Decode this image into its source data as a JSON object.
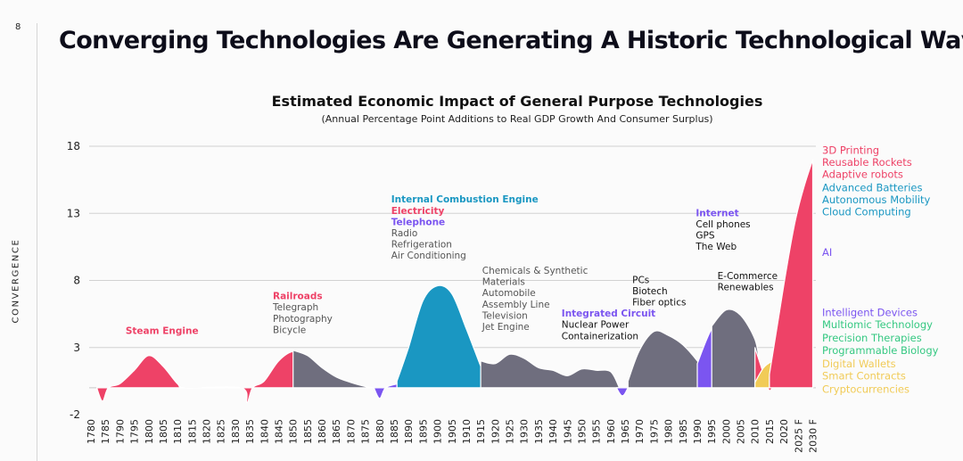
{
  "page": {
    "number": "8",
    "title": "Converging Technologies Are Generating A Historic Technological Wave",
    "side_label": "CONVERGENCE"
  },
  "colors": {
    "red": "#ee4267",
    "blue": "#1a97c2",
    "purple": "#7b55f0",
    "gray": "#6f6e7e",
    "green": "#35c882",
    "yellow": "#f1cb57",
    "label_gray": "#555555"
  },
  "chart_data": {
    "type": "area",
    "title": "Estimated Economic Impact of General Purpose Technologies",
    "subtitle": "(Annual Percentage Point Additions to Real GDP Growth And Consumer Surplus)",
    "ylabel": "CONVERGENCE",
    "ylim": [
      -2,
      18
    ],
    "yticks": [
      -2,
      3,
      8,
      13,
      18
    ],
    "grid": true,
    "x_ticks": [
      "1780",
      "1785",
      "1790",
      "1795",
      "1800",
      "1805",
      "1810",
      "1815",
      "1820",
      "1825",
      "1830",
      "1835",
      "1840",
      "1845",
      "1850",
      "1855",
      "1860",
      "1865",
      "1870",
      "1875",
      "1880",
      "1885",
      "1890",
      "1895",
      "1900",
      "1905",
      "1910",
      "1915",
      "1920",
      "1925",
      "1930",
      "1935",
      "1940",
      "1945",
      "1950",
      "1955",
      "1960",
      "1965",
      "1970",
      "1975",
      "1980",
      "1985",
      "1990",
      "1995",
      "2000",
      "2005",
      "2010",
      "2015",
      "2020",
      "2025 F",
      "2030 F"
    ],
    "series": [
      {
        "color": "red",
        "points": [
          [
            1782,
            0
          ],
          [
            1784,
            -1
          ],
          [
            1786,
            0
          ],
          [
            1790,
            0.3
          ],
          [
            1795,
            1.3
          ],
          [
            1800,
            2.4
          ],
          [
            1805,
            1.6
          ],
          [
            1810,
            0.3
          ],
          [
            1813,
            0
          ],
          [
            1832,
            0
          ],
          [
            1834,
            -1.1
          ],
          [
            1836,
            0
          ],
          [
            1840,
            0.5
          ],
          [
            1845,
            2
          ],
          [
            1850,
            2.7
          ],
          [
            1855,
            2.2
          ],
          [
            1860,
            1
          ],
          [
            1865,
            0.4
          ],
          [
            1867,
            0
          ]
        ]
      },
      {
        "color": "gray",
        "points": [
          [
            1850,
            2.8
          ],
          [
            1855,
            2.4
          ],
          [
            1860,
            1.5
          ],
          [
            1865,
            0.8
          ],
          [
            1870,
            0.4
          ],
          [
            1875,
            0.1
          ],
          [
            1878,
            0
          ]
        ]
      },
      {
        "color": "purple",
        "points": [
          [
            1878,
            0
          ],
          [
            1880,
            -0.8
          ],
          [
            1882,
            0
          ],
          [
            1886,
            0.3
          ],
          [
            1890,
            0.6
          ],
          [
            1895,
            1.6
          ],
          [
            1900,
            2.4
          ],
          [
            1905,
            2
          ],
          [
            1910,
            1.1
          ],
          [
            1915,
            0.5
          ],
          [
            1918,
            0
          ]
        ]
      },
      {
        "color": "red",
        "points": [
          [
            1886,
            0.4
          ],
          [
            1890,
            1.5
          ],
          [
            1895,
            4
          ],
          [
            1900,
            5.1
          ],
          [
            1905,
            4.4
          ],
          [
            1910,
            2.6
          ],
          [
            1915,
            1
          ],
          [
            1918,
            0
          ]
        ]
      },
      {
        "color": "blue",
        "points": [
          [
            1886,
            0.5
          ],
          [
            1890,
            3
          ],
          [
            1895,
            6.5
          ],
          [
            1900,
            7.6
          ],
          [
            1905,
            7
          ],
          [
            1910,
            4.4
          ],
          [
            1915,
            1.6
          ],
          [
            1918,
            0
          ]
        ]
      },
      {
        "color": "gray",
        "points": [
          [
            1915,
            2
          ],
          [
            1920,
            1.8
          ],
          [
            1925,
            2.5
          ],
          [
            1930,
            2.2
          ],
          [
            1935,
            1.5
          ],
          [
            1940,
            1.3
          ],
          [
            1945,
            0.9
          ],
          [
            1950,
            1.4
          ],
          [
            1955,
            1.3
          ],
          [
            1960,
            1.2
          ],
          [
            1963,
            0
          ]
        ]
      },
      {
        "color": "purple",
        "points": [
          [
            1962,
            0
          ],
          [
            1964,
            -0.6
          ],
          [
            1966,
            0
          ],
          [
            1970,
            2
          ],
          [
            1975,
            3.3
          ],
          [
            1980,
            3.6
          ],
          [
            1985,
            2.9
          ],
          [
            1990,
            1.5
          ],
          [
            1993,
            0.5
          ]
        ]
      },
      {
        "color": "gray",
        "points": [
          [
            1966,
            0.5
          ],
          [
            1970,
            2.8
          ],
          [
            1975,
            4.2
          ],
          [
            1980,
            3.9
          ],
          [
            1985,
            3.2
          ],
          [
            1990,
            2
          ],
          [
            1993,
            1
          ]
        ]
      },
      {
        "color": "purple",
        "points": [
          [
            1990,
            1.8
          ],
          [
            1995,
            4.4
          ],
          [
            2000,
            5.3
          ],
          [
            2005,
            5
          ],
          [
            2010,
            2.4
          ],
          [
            2013,
            0.5
          ],
          [
            2015,
            0
          ]
        ]
      },
      {
        "color": "gray",
        "points": [
          [
            1995,
            4.6
          ],
          [
            2000,
            5.8
          ],
          [
            2005,
            5.4
          ],
          [
            2010,
            3.6
          ],
          [
            2012,
            1.6
          ],
          [
            2015,
            0.5
          ]
        ]
      },
      {
        "color": "red",
        "points": [
          [
            2010,
            3
          ],
          [
            2013,
            1
          ],
          [
            2015,
            -0.2
          ],
          [
            2017,
            0.5
          ]
        ]
      },
      {
        "color": "yellow",
        "points": [
          [
            2010,
            0.4
          ],
          [
            2013,
            1.5
          ],
          [
            2016,
            2
          ],
          [
            2020,
            2.6
          ],
          [
            2025,
            3.3
          ],
          [
            2030,
            3.4
          ]
        ]
      },
      {
        "color": "green",
        "points": [
          [
            2016,
            2.3
          ],
          [
            2020,
            3
          ],
          [
            2025,
            3.8
          ],
          [
            2030,
            4.1
          ]
        ]
      },
      {
        "color": "purple",
        "points": [
          [
            2015,
            0.5
          ],
          [
            2018,
            3
          ],
          [
            2021,
            6
          ],
          [
            2024,
            9
          ],
          [
            2027,
            11.5
          ],
          [
            2030,
            12.8
          ]
        ]
      },
      {
        "color": "blue",
        "points": [
          [
            2015,
            0.8
          ],
          [
            2018,
            4
          ],
          [
            2021,
            7.5
          ],
          [
            2024,
            11
          ],
          [
            2027,
            13.5
          ],
          [
            2030,
            15.2
          ]
        ]
      },
      {
        "color": "red",
        "points": [
          [
            2015,
            1
          ],
          [
            2018,
            5
          ],
          [
            2021,
            9
          ],
          [
            2024,
            12.5
          ],
          [
            2027,
            15
          ],
          [
            2030,
            17
          ]
        ]
      }
    ],
    "annotations": [
      {
        "x": 1792,
        "y": 4,
        "lines": [
          {
            "text": "Steam Engine",
            "style": "bold",
            "color": "red"
          }
        ]
      },
      {
        "x": 1843,
        "y": 6.6,
        "lines": [
          {
            "text": "Railroads",
            "style": "bold",
            "color": "red"
          },
          {
            "text": "Telegraph",
            "style": "normal",
            "color": "label_gray"
          },
          {
            "text": "Photography",
            "style": "normal",
            "color": "label_gray"
          },
          {
            "text": "Bicycle",
            "style": "normal",
            "color": "label_gray"
          }
        ]
      },
      {
        "x": 1884,
        "y": 13.8,
        "lines": [
          {
            "text": "Internal Combustion Engine",
            "style": "bold",
            "color": "blue"
          },
          {
            "text": "Electricity",
            "style": "bold",
            "color": "red"
          },
          {
            "text": "Telephone",
            "style": "bold",
            "color": "purple"
          },
          {
            "text": "Radio",
            "style": "normal",
            "color": "label_gray"
          },
          {
            "text": "Refrigeration",
            "style": "normal",
            "color": "label_gray"
          },
          {
            "text": "Air Conditioning",
            "style": "normal",
            "color": "label_gray"
          }
        ]
      },
      {
        "x": 1915.5,
        "y": 8.5,
        "lines": [
          {
            "text": "Chemicals & Synthetic",
            "style": "normal",
            "color": "label_gray"
          },
          {
            "text": "Materials",
            "style": "normal",
            "color": "label_gray"
          },
          {
            "text": "Automobile",
            "style": "normal",
            "color": "label_gray"
          },
          {
            "text": "Assembly Line",
            "style": "normal",
            "color": "label_gray"
          },
          {
            "text": "Television",
            "style": "normal",
            "color": "label_gray"
          },
          {
            "text": "Jet Engine",
            "style": "normal",
            "color": "label_gray"
          }
        ]
      },
      {
        "x": 1943,
        "y": 5.3,
        "lines": [
          {
            "text": "Integrated Circuit",
            "style": "bold",
            "color": "purple"
          },
          {
            "text": "Nuclear Power",
            "style": "normal",
            "color": "#111111"
          },
          {
            "text": "Containerization",
            "style": "normal",
            "color": "#111111"
          }
        ]
      },
      {
        "x": 1967.5,
        "y": 7.8,
        "lines": [
          {
            "text": "PCs",
            "style": "normal",
            "color": "#111111"
          },
          {
            "text": "Biotech",
            "style": "normal",
            "color": "#111111"
          },
          {
            "text": "Fiber optics",
            "style": "normal",
            "color": "#111111"
          }
        ]
      },
      {
        "x": 1989.5,
        "y": 12.8,
        "lines": [
          {
            "text": "Internet",
            "style": "bold",
            "color": "purple"
          },
          {
            "text": "Cell phones",
            "style": "normal",
            "color": "#111111"
          },
          {
            "text": "GPS",
            "style": "normal",
            "color": "#111111"
          },
          {
            "text": "The Web",
            "style": "normal",
            "color": "#111111"
          }
        ]
      },
      {
        "x": 1997,
        "y": 8.1,
        "lines": [
          {
            "text": "E-Commerce",
            "style": "normal",
            "color": "#111111"
          },
          {
            "text": "Renewables",
            "style": "normal",
            "color": "#111111"
          }
        ]
      }
    ],
    "legend": [
      {
        "text": "3D Printing",
        "color": "red",
        "y": 17.7
      },
      {
        "text": "Reusable Rockets",
        "color": "red",
        "y": 16.8
      },
      {
        "text": "Adaptive robots",
        "color": "red",
        "y": 15.9
      },
      {
        "text": "Advanced Batteries",
        "color": "blue",
        "y": 14.9
      },
      {
        "text": "Autonomous Mobility",
        "color": "blue",
        "y": 14.0
      },
      {
        "text": "Cloud Computing",
        "color": "blue",
        "y": 13.1
      },
      {
        "text": "AI",
        "color": "purple",
        "y": 10.1
      },
      {
        "text": "Intelligent Devices",
        "color": "purple",
        "y": 5.6
      },
      {
        "text": "Multiomic Technology",
        "color": "green",
        "y": 4.7
      },
      {
        "text": "Precision Therapies",
        "color": "green",
        "y": 3.7
      },
      {
        "text": "Programmable Biology",
        "color": "green",
        "y": 2.8
      },
      {
        "text": "Digital Wallets",
        "color": "yellow",
        "y": 1.8
      },
      {
        "text": "Smart Contracts",
        "color": "yellow",
        "y": 0.9
      },
      {
        "text": "Cryptocurrencies",
        "color": "yellow",
        "y": -0.1
      }
    ]
  }
}
